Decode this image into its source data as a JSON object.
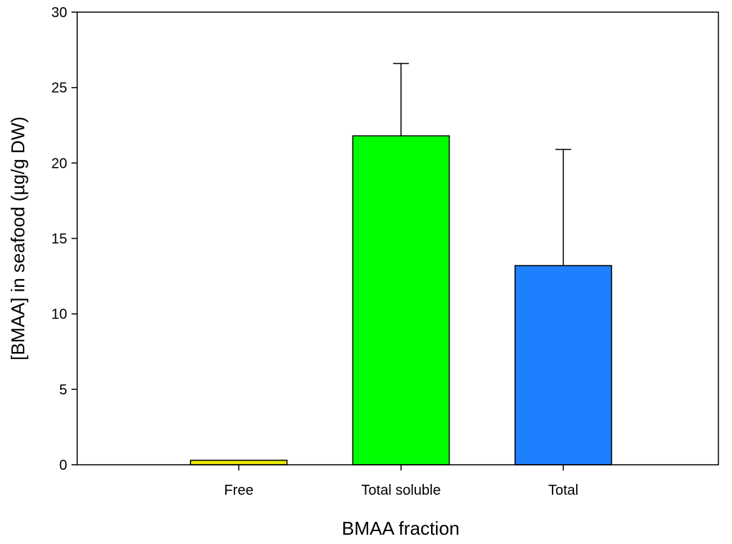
{
  "chart_data": {
    "type": "bar",
    "title": "",
    "xlabel": "BMAA fraction",
    "ylabel": "[BMAA] in seafood (µg/g DW)",
    "ylim": [
      0,
      30
    ],
    "yticks": [
      0,
      5,
      10,
      15,
      20,
      25,
      30
    ],
    "categories": [
      "Free",
      "Total soluble",
      "Total"
    ],
    "values": [
      0.3,
      21.8,
      13.2
    ],
    "error_upper": [
      0.0,
      4.8,
      7.7
    ],
    "colors": [
      "#E8E800",
      "#00FF00",
      "#1E7FFF"
    ],
    "grid": false,
    "legend": "none"
  }
}
